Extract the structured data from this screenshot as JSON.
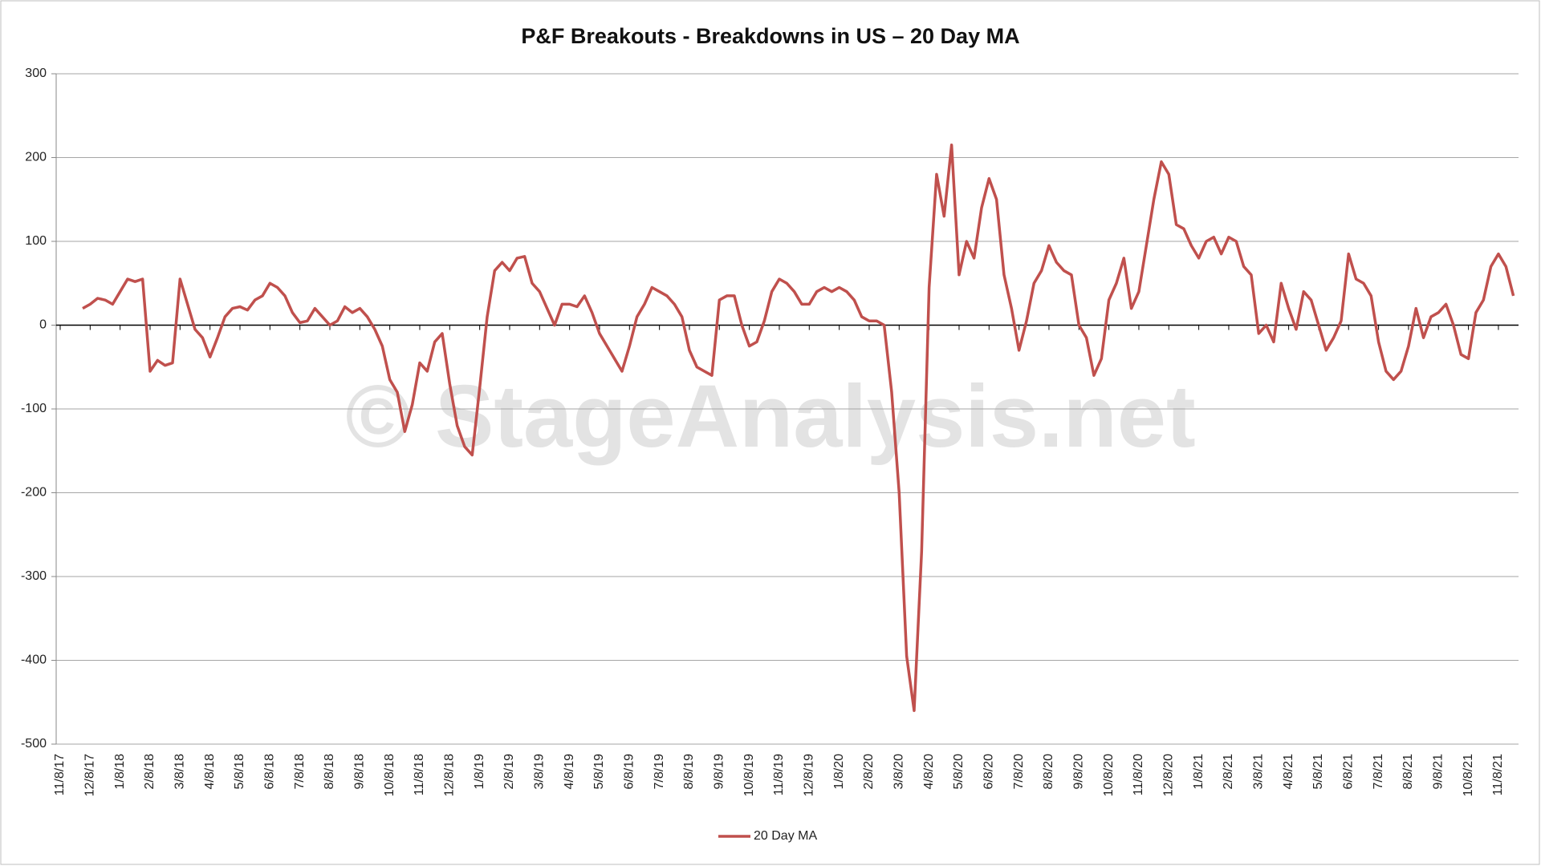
{
  "chart_data": {
    "type": "line",
    "title": "P&F Breakouts - Breakdowns in US – 20 Day MA",
    "watermark": "© StageAnalysis.net",
    "categories": [
      "11/8/17",
      null,
      null,
      null,
      "12/8/17",
      null,
      null,
      null,
      "1/8/18",
      null,
      null,
      null,
      "2/8/18",
      null,
      null,
      null,
      "3/8/18",
      null,
      null,
      null,
      "4/8/18",
      null,
      null,
      null,
      "5/8/18",
      null,
      null,
      null,
      "6/8/18",
      null,
      null,
      null,
      "7/8/18",
      null,
      null,
      null,
      "8/8/18",
      null,
      null,
      null,
      "9/8/18",
      null,
      null,
      null,
      "10/8/18",
      null,
      null,
      null,
      "11/8/18",
      null,
      null,
      null,
      "12/8/18",
      null,
      null,
      null,
      "1/8/19",
      null,
      null,
      null,
      "2/8/19",
      null,
      null,
      null,
      "3/8/19",
      null,
      null,
      null,
      "4/8/19",
      null,
      null,
      null,
      "5/8/19",
      null,
      null,
      null,
      "6/8/19",
      null,
      null,
      null,
      "7/8/19",
      null,
      null,
      null,
      "8/8/19",
      null,
      null,
      null,
      "9/8/19",
      null,
      null,
      null,
      "10/8/19",
      null,
      null,
      null,
      "11/8/19",
      null,
      null,
      null,
      "12/8/19",
      null,
      null,
      null,
      "1/8/20",
      null,
      null,
      null,
      "2/8/20",
      null,
      null,
      null,
      "3/8/20",
      null,
      null,
      null,
      "4/8/20",
      null,
      null,
      null,
      "5/8/20",
      null,
      null,
      null,
      "6/8/20",
      null,
      null,
      null,
      "7/8/20",
      null,
      null,
      null,
      "8/8/20",
      null,
      null,
      null,
      "9/8/20",
      null,
      null,
      null,
      "10/8/20",
      null,
      null,
      null,
      "11/8/20",
      null,
      null,
      null,
      "12/8/20",
      null,
      null,
      null,
      "1/8/21",
      null,
      null,
      null,
      "2/8/21",
      null,
      null,
      null,
      "3/8/21",
      null,
      null,
      null,
      "4/8/21",
      null,
      null,
      null,
      "5/8/21",
      null,
      null,
      null,
      "6/8/21",
      null,
      null,
      null,
      "7/8/21",
      null,
      null,
      null,
      "8/8/21",
      null,
      null,
      null,
      "9/8/21",
      null,
      null,
      null,
      "10/8/21",
      null,
      null,
      null,
      "11/8/21",
      null,
      null
    ],
    "series": [
      {
        "name": "20 Day MA",
        "color": "#c0504d",
        "values": [
          null,
          null,
          null,
          20,
          25,
          32,
          30,
          25,
          40,
          55,
          52,
          55,
          -55,
          -42,
          -48,
          -45,
          55,
          25,
          -5,
          -15,
          -38,
          -15,
          10,
          20,
          22,
          18,
          30,
          35,
          50,
          45,
          35,
          15,
          3,
          5,
          20,
          10,
          0,
          5,
          22,
          15,
          20,
          10,
          -5,
          -25,
          -65,
          -80,
          -127,
          -95,
          -45,
          -55,
          -20,
          -10,
          -70,
          -120,
          -145,
          -155,
          -75,
          10,
          65,
          75,
          65,
          80,
          82,
          50,
          40,
          20,
          0,
          25,
          25,
          22,
          35,
          15,
          -10,
          -25,
          -40,
          -55,
          -25,
          10,
          25,
          45,
          40,
          35,
          25,
          10,
          -30,
          -50,
          -55,
          -60,
          30,
          35,
          35,
          0,
          -25,
          -20,
          5,
          40,
          55,
          50,
          40,
          25,
          25,
          40,
          45,
          40,
          45,
          40,
          30,
          10,
          5,
          5,
          0,
          -80,
          -200,
          -395,
          -460,
          -270,
          45,
          180,
          130,
          215,
          60,
          100,
          80,
          140,
          175,
          150,
          60,
          20,
          -30,
          5,
          50,
          65,
          95,
          75,
          65,
          60,
          0,
          -15,
          -60,
          -40,
          30,
          50,
          80,
          20,
          40,
          95,
          150,
          195,
          180,
          120,
          115,
          95,
          80,
          100,
          105,
          85,
          105,
          100,
          70,
          60,
          -10,
          0,
          -20,
          50,
          20,
          -5,
          40,
          30,
          0,
          -30,
          -15,
          5,
          85,
          55,
          50,
          35,
          -20,
          -55,
          -65,
          -55,
          -25,
          20,
          -15,
          10,
          15,
          25,
          0,
          -35,
          -40,
          15,
          30,
          70,
          85,
          70,
          35
        ]
      }
    ],
    "ylim": [
      -500,
      300
    ],
    "yticks": [
      -500,
      -400,
      -300,
      -200,
      -100,
      0,
      100,
      200,
      300
    ],
    "grid": true,
    "legend": "bottom"
  }
}
